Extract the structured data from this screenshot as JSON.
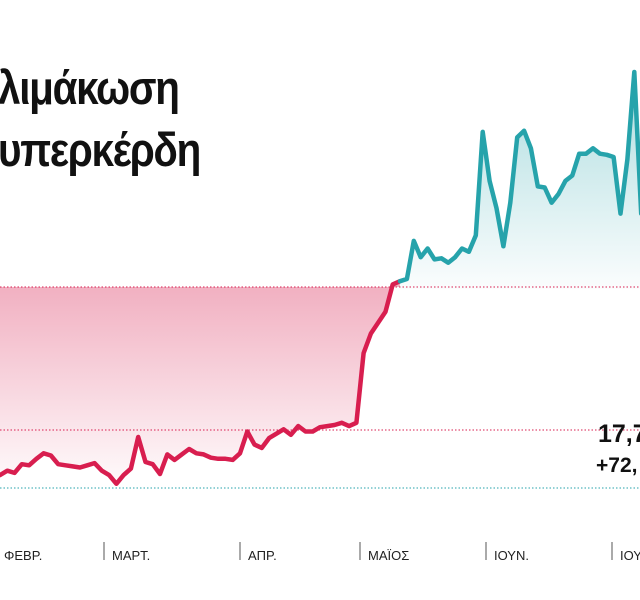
{
  "title": [
    "λιμάκωση",
    "υπερκέρδη"
  ],
  "colors": {
    "before": "#d81e4f",
    "after": "#26a3ab",
    "before_fill_top": "#d81e4f",
    "after_fill_top": "#26a3ab",
    "grid_red": "#d81e4f",
    "grid_green": "#26a3ab"
  },
  "chart_data": {
    "type": "area",
    "title": "λιμάκωση υπερκέρδη",
    "x_tick_labels": [
      "ΦΕΒΡ.",
      "ΜΑΡΤ.",
      "ΑΠΡ.",
      "ΜΑΪΟΣ",
      "ΙΟΥΝ.",
      "ΙΟΥ"
    ],
    "reference_lines": [
      {
        "name": "upper",
        "color": "#d81e4f",
        "value_index": 60
      },
      {
        "name": "middle",
        "color": "#d81e4f",
        "value_index": 0
      },
      {
        "name": "lower",
        "color": "#26a3ab",
        "value_index": 0
      }
    ],
    "annotation": {
      "value": "17,7",
      "change": "+72,"
    },
    "series": [
      {
        "segment": "before",
        "color": "#d81e4f",
        "values": [
          7.0,
          7.4,
          7.2,
          8.0,
          7.9,
          8.5,
          9.0,
          8.8,
          8.0,
          7.9,
          7.8,
          7.7,
          7.9,
          8.1,
          7.4,
          7.0,
          6.2,
          7.0,
          7.6,
          10.5,
          8.2,
          8.0,
          7.1,
          8.9,
          8.4,
          8.9,
          9.4,
          9.0,
          8.9,
          8.6,
          8.5,
          8.5,
          8.4,
          9.0,
          11.0,
          9.8,
          9.5,
          10.4,
          10.8,
          11.2,
          10.7,
          11.5,
          11.0,
          11.0,
          11.4,
          11.5,
          11.6,
          11.8,
          11.5,
          11.8,
          18.2,
          20.0,
          21.0,
          22.0,
          24.5,
          24.8
        ]
      },
      {
        "segment": "after",
        "color": "#26a3ab",
        "values": [
          24.8,
          25.0,
          28.5,
          27.0,
          27.8,
          26.8,
          26.9,
          26.5,
          27.0,
          27.8,
          27.5,
          29.0,
          38.5,
          34.0,
          31.5,
          28.0,
          32.0,
          38.0,
          38.6,
          37.0,
          33.5,
          33.4,
          32.0,
          32.8,
          34.0,
          34.5,
          36.5,
          36.5,
          37.0,
          36.5,
          36.4,
          36.2,
          31.0,
          36.0,
          44.0,
          31.0,
          30.8,
          30.0
        ]
      }
    ]
  }
}
